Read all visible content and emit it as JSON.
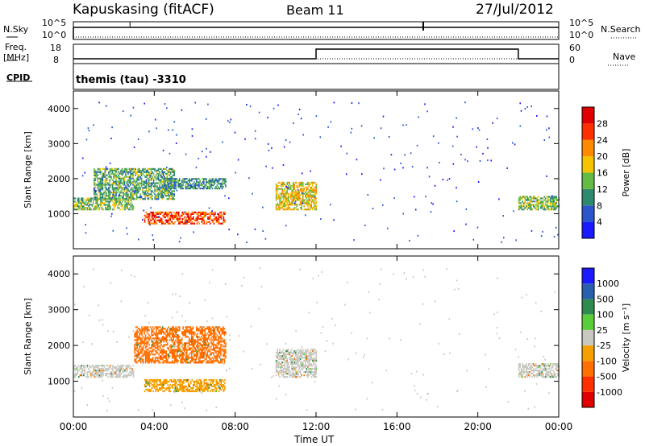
{
  "header": {
    "station": "Kapuskasing (fitACF)",
    "beam": "Beam 11",
    "date": "27/Jul/2012"
  },
  "status_panels": {
    "nsky_label": "N.Sky",
    "nsky_ticks": [
      "10^5",
      "10^0"
    ],
    "nsearch_label": "N.Search",
    "nsearch_ticks": [
      "10^5",
      "10^0"
    ],
    "freq_label": "Freq.",
    "freq_unit": "[MHz]",
    "freq_ticks": [
      "18",
      "8"
    ],
    "nave_label": "Nave",
    "nave_ticks": [
      "60",
      "0"
    ],
    "cpid_label": "CPID",
    "cpid_value": "themis (tau) -3310"
  },
  "axes": {
    "x_ticks": [
      "00:00",
      "04:00",
      "08:00",
      "12:00",
      "16:00",
      "20:00",
      "00:00"
    ],
    "x_label": "Time UT",
    "y_label": "Slant Range [km]",
    "y_ticks": [
      "1000",
      "2000",
      "3000",
      "4000"
    ]
  },
  "colorbars": {
    "power": {
      "label": "Power [dB]",
      "ticks": [
        "4",
        "8",
        "12",
        "16",
        "20",
        "24",
        "28"
      ],
      "colors": [
        "#1a1aff",
        "#2a55cc",
        "#2e8a6e",
        "#66bb44",
        "#f5c400",
        "#ff8a00",
        "#ff3000",
        "#e00000"
      ]
    },
    "velocity": {
      "label": "Velocity [m s⁻¹]",
      "ticks": [
        "1000",
        "500",
        "100",
        "25",
        "-25",
        "-100",
        "-500",
        "-1000"
      ],
      "colors": [
        "#1a1aff",
        "#2a5faf",
        "#2e8a4e",
        "#5acd3a",
        "#c8c8c0",
        "#f5a000",
        "#ff7000",
        "#ff3000",
        "#e00000"
      ]
    }
  },
  "chart_data": [
    {
      "type": "heatmap",
      "title": "Power",
      "xlabel": "Time UT",
      "ylabel": "Slant Range [km]",
      "xlim": [
        "00:00",
        "24:00"
      ],
      "ylim": [
        0,
        4500
      ],
      "colorscale": "Power [dB]",
      "zlim": [
        0,
        32
      ],
      "regions": [
        {
          "t": [
            0.0,
            3.0
          ],
          "range": [
            1100,
            1450
          ],
          "power_db": 14
        },
        {
          "t": [
            1.0,
            5.0
          ],
          "range": [
            1400,
            2300
          ],
          "power_db": 12
        },
        {
          "t": [
            3.5,
            7.5
          ],
          "range": [
            700,
            1050
          ],
          "power_db": 26
        },
        {
          "t": [
            4.5,
            7.5
          ],
          "range": [
            1700,
            2000
          ],
          "power_db": 10
        },
        {
          "t": [
            10.0,
            12.0
          ],
          "range": [
            1100,
            1900
          ],
          "power_db": 18
        },
        {
          "t": [
            22.0,
            24.0
          ],
          "range": [
            1100,
            1500
          ],
          "power_db": 14
        }
      ]
    },
    {
      "type": "heatmap",
      "title": "Velocity",
      "xlabel": "Time UT",
      "ylabel": "Slant Range [km]",
      "xlim": [
        "00:00",
        "24:00"
      ],
      "ylim": [
        0,
        4500
      ],
      "colorscale": "Velocity [m s-1]",
      "zlim": [
        -1000,
        1000
      ],
      "regions": [
        {
          "t": [
            0.0,
            3.0
          ],
          "range": [
            1100,
            1450
          ],
          "velocity": 0
        },
        {
          "t": [
            3.0,
            7.5
          ],
          "range": [
            1500,
            2500
          ],
          "velocity": -150
        },
        {
          "t": [
            3.5,
            7.5
          ],
          "range": [
            700,
            1050
          ],
          "velocity": -50
        },
        {
          "t": [
            10.0,
            12.0
          ],
          "range": [
            1100,
            1900
          ],
          "velocity": 0
        },
        {
          "t": [
            22.0,
            24.0
          ],
          "range": [
            1100,
            1500
          ],
          "velocity": 0
        }
      ]
    },
    {
      "type": "line",
      "title": "Freq.",
      "series": [
        {
          "name": "Freq.",
          "x": [
            "00:00",
            "12:00",
            "12:00",
            "22:00",
            "22:00",
            "24:00"
          ],
          "values": [
            10.5,
            10.5,
            15.5,
            15.5,
            10.5,
            10.5
          ]
        }
      ]
    }
  ]
}
